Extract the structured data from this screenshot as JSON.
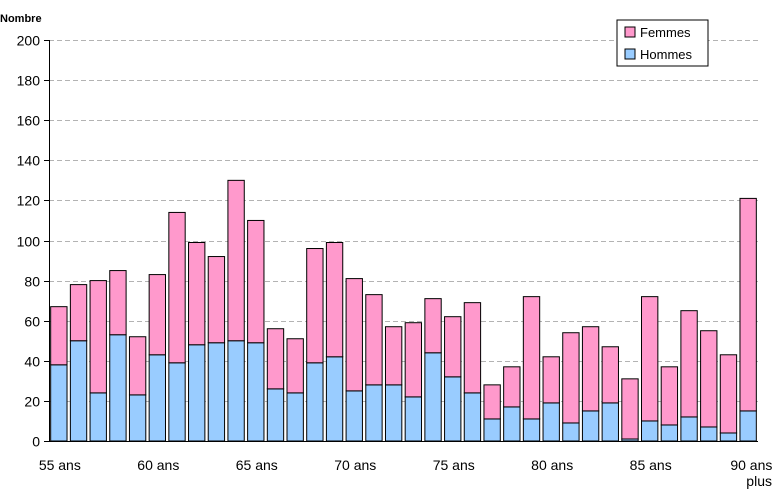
{
  "chart_data": {
    "type": "bar",
    "stacked": true,
    "ylabel": "Nombre",
    "ylim": [
      0,
      200
    ],
    "yticks": [
      0,
      20,
      40,
      60,
      80,
      100,
      120,
      140,
      160,
      180,
      200
    ],
    "grid": true,
    "legend_position": "top-right",
    "categories": [
      "55 ans",
      "56",
      "57",
      "58",
      "59",
      "60 ans",
      "61",
      "62",
      "63",
      "64",
      "65 ans",
      "66",
      "67",
      "68",
      "69",
      "70 ans",
      "71",
      "72",
      "73",
      "74",
      "75 ans",
      "76",
      "77",
      "78",
      "79",
      "80 ans",
      "81",
      "82",
      "83",
      "84",
      "85 ans",
      "86",
      "87",
      "88",
      "89",
      "90 ans et plus"
    ],
    "xtick_labels": [
      "55 ans",
      "60 ans",
      "65 ans",
      "70 ans",
      "75 ans",
      "80 ans",
      "85 ans",
      "90 ans et plus"
    ],
    "xtick_indices": [
      0,
      5,
      10,
      15,
      20,
      25,
      30,
      35
    ],
    "series": [
      {
        "name": "Hommes",
        "color": "#99ccff",
        "values": [
          38,
          50,
          24,
          53,
          23,
          43,
          39,
          48,
          49,
          50,
          49,
          26,
          24,
          39,
          42,
          25,
          28,
          28,
          22,
          44,
          32,
          24,
          11,
          17,
          11,
          19,
          9,
          15,
          19,
          1,
          10,
          8,
          12,
          7,
          4,
          15
        ]
      },
      {
        "name": "Femmes",
        "color": "#ff99cc",
        "values": [
          29,
          28,
          56,
          32,
          29,
          40,
          75,
          51,
          43,
          80,
          61,
          30,
          27,
          57,
          57,
          56,
          45,
          29,
          37,
          27,
          30,
          45,
          17,
          20,
          61,
          23,
          45,
          42,
          28,
          30,
          62,
          29,
          53,
          48,
          39,
          106
        ]
      }
    ]
  }
}
